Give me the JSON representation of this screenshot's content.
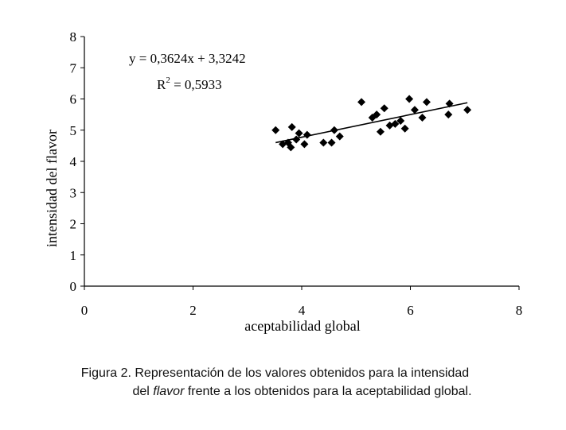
{
  "chart_data": {
    "type": "scatter",
    "title": "",
    "xlabel": "aceptabilidad global",
    "ylabel": "intensidad del flavor",
    "xlim": [
      0,
      8
    ],
    "ylim": [
      0,
      8
    ],
    "x_ticks": [
      "0",
      "2",
      "4",
      "6",
      "8"
    ],
    "y_ticks": [
      "0",
      "1",
      "2",
      "3",
      "4",
      "5",
      "6",
      "7",
      "8"
    ],
    "grid": false,
    "marker": "diamond",
    "marker_color": "#000000",
    "series": [
      {
        "points": [
          {
            "x": 3.52,
            "y": 5.0
          },
          {
            "x": 3.65,
            "y": 4.55
          },
          {
            "x": 3.75,
            "y": 4.6
          },
          {
            "x": 3.8,
            "y": 4.45
          },
          {
            "x": 3.82,
            "y": 5.1
          },
          {
            "x": 3.9,
            "y": 4.7
          },
          {
            "x": 3.95,
            "y": 4.9
          },
          {
            "x": 4.05,
            "y": 4.55
          },
          {
            "x": 4.1,
            "y": 4.85
          },
          {
            "x": 4.4,
            "y": 4.6
          },
          {
            "x": 4.55,
            "y": 4.6
          },
          {
            "x": 4.6,
            "y": 5.0
          },
          {
            "x": 4.7,
            "y": 4.8
          },
          {
            "x": 5.1,
            "y": 5.9
          },
          {
            "x": 5.3,
            "y": 5.4
          },
          {
            "x": 5.38,
            "y": 5.5
          },
          {
            "x": 5.45,
            "y": 4.95
          },
          {
            "x": 5.52,
            "y": 5.7
          },
          {
            "x": 5.62,
            "y": 5.15
          },
          {
            "x": 5.72,
            "y": 5.2
          },
          {
            "x": 5.82,
            "y": 5.3
          },
          {
            "x": 5.9,
            "y": 5.05
          },
          {
            "x": 5.98,
            "y": 6.0
          },
          {
            "x": 6.08,
            "y": 5.65
          },
          {
            "x": 6.22,
            "y": 5.4
          },
          {
            "x": 6.3,
            "y": 5.9
          },
          {
            "x": 6.7,
            "y": 5.5
          },
          {
            "x": 6.72,
            "y": 5.85
          },
          {
            "x": 7.05,
            "y": 5.65
          }
        ]
      }
    ],
    "trendline": {
      "slope": 0.3624,
      "intercept": 3.3242,
      "x_from": 3.52,
      "x_to": 7.05,
      "equation": "y = 0,3624x + 3,3242",
      "r2_label": "R",
      "r2_sup": "2",
      "r2_value": " = 0,5933"
    }
  },
  "caption": {
    "line1": "Figura 2. Representación de los valores obtenidos para la intensidad",
    "line2_prefix": "del ",
    "line2_italic": "flavor",
    "line2_suffix": " frente a los obtenidos para la aceptabilidad global."
  }
}
